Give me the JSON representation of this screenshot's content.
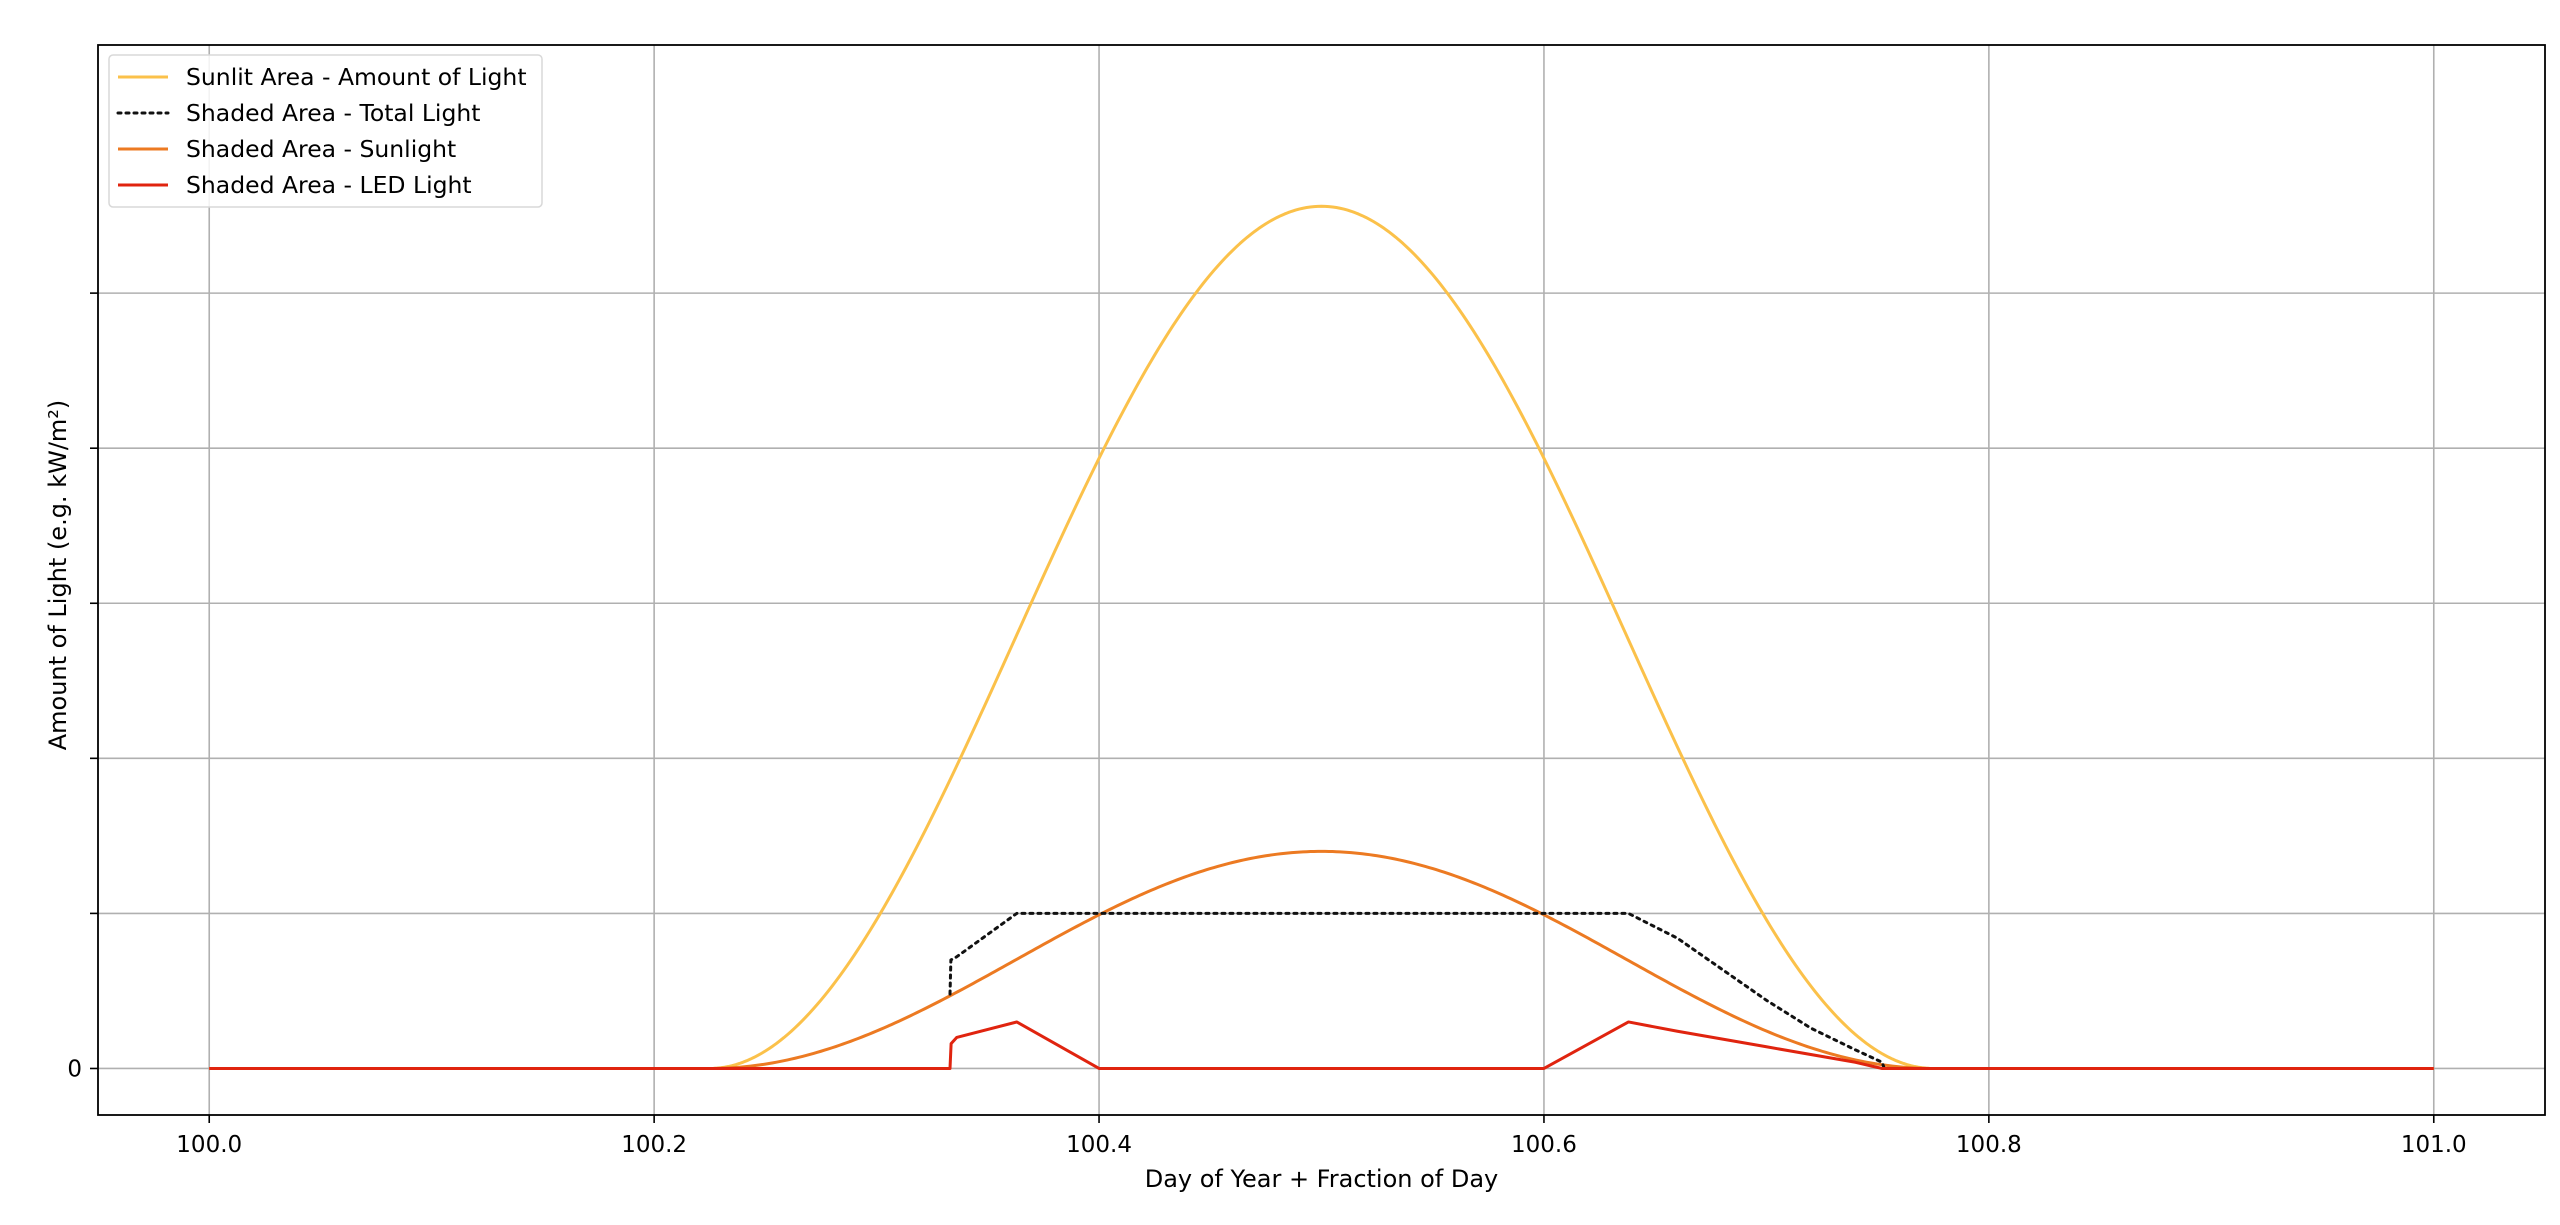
{
  "chart_data": {
    "type": "line",
    "xlabel": "Day of Year + Fraction of Day",
    "ylabel": "Amount of Light (e.g. kW/m²)",
    "xlim": [
      99.95,
      101.05
    ],
    "ylim": [
      -0.15,
      3.3
    ],
    "x_ticks": [
      100.0,
      100.2,
      100.4,
      100.6,
      100.8,
      101.0
    ],
    "x_tick_labels": [
      "100.0",
      "100.2",
      "100.4",
      "100.6",
      "100.8",
      "101.0"
    ],
    "y_ticks": [
      0,
      0.5,
      1.0,
      1.5,
      2.0,
      2.5
    ],
    "y_tick_labels": [
      "0",
      "",
      "",
      "",
      "",
      ""
    ],
    "grid": true,
    "legend_position": "top-left",
    "series": [
      {
        "name": "Sunlit Area - Amount of Light",
        "color": "#fbc14a",
        "style": "solid",
        "peak": 2.78,
        "rise": 100.225,
        "set": 100.775
      },
      {
        "name": "Shaded Area - Total Light",
        "color": "#111111",
        "style": "dotted",
        "x": [
          100.333,
          100.3334,
          100.336,
          100.363,
          100.4,
          100.6,
          100.638,
          100.66,
          100.68,
          100.7,
          100.72,
          100.74,
          100.752,
          100.753
        ],
        "y": [
          0.24,
          0.35,
          0.36,
          0.5,
          0.5,
          0.5,
          0.5,
          0.42,
          0.32,
          0.22,
          0.13,
          0.06,
          0.02,
          0.0
        ]
      },
      {
        "name": "Shaded Area - Sunlight",
        "color": "#ec7a22",
        "style": "solid",
        "peak": 0.7,
        "rise": 100.225,
        "set": 100.775
      },
      {
        "name": "Shaded Area - LED Light",
        "color": "#e0240f",
        "style": "solid",
        "x": [
          100.0,
          100.333,
          100.3335,
          100.336,
          100.363,
          100.4,
          100.6,
          100.638,
          100.66,
          100.7,
          100.74,
          100.752,
          100.76,
          101.0
        ],
        "y": [
          0,
          0,
          0.08,
          0.1,
          0.15,
          0,
          0,
          0.15,
          0.12,
          0.07,
          0.02,
          0,
          0,
          0
        ]
      }
    ]
  }
}
